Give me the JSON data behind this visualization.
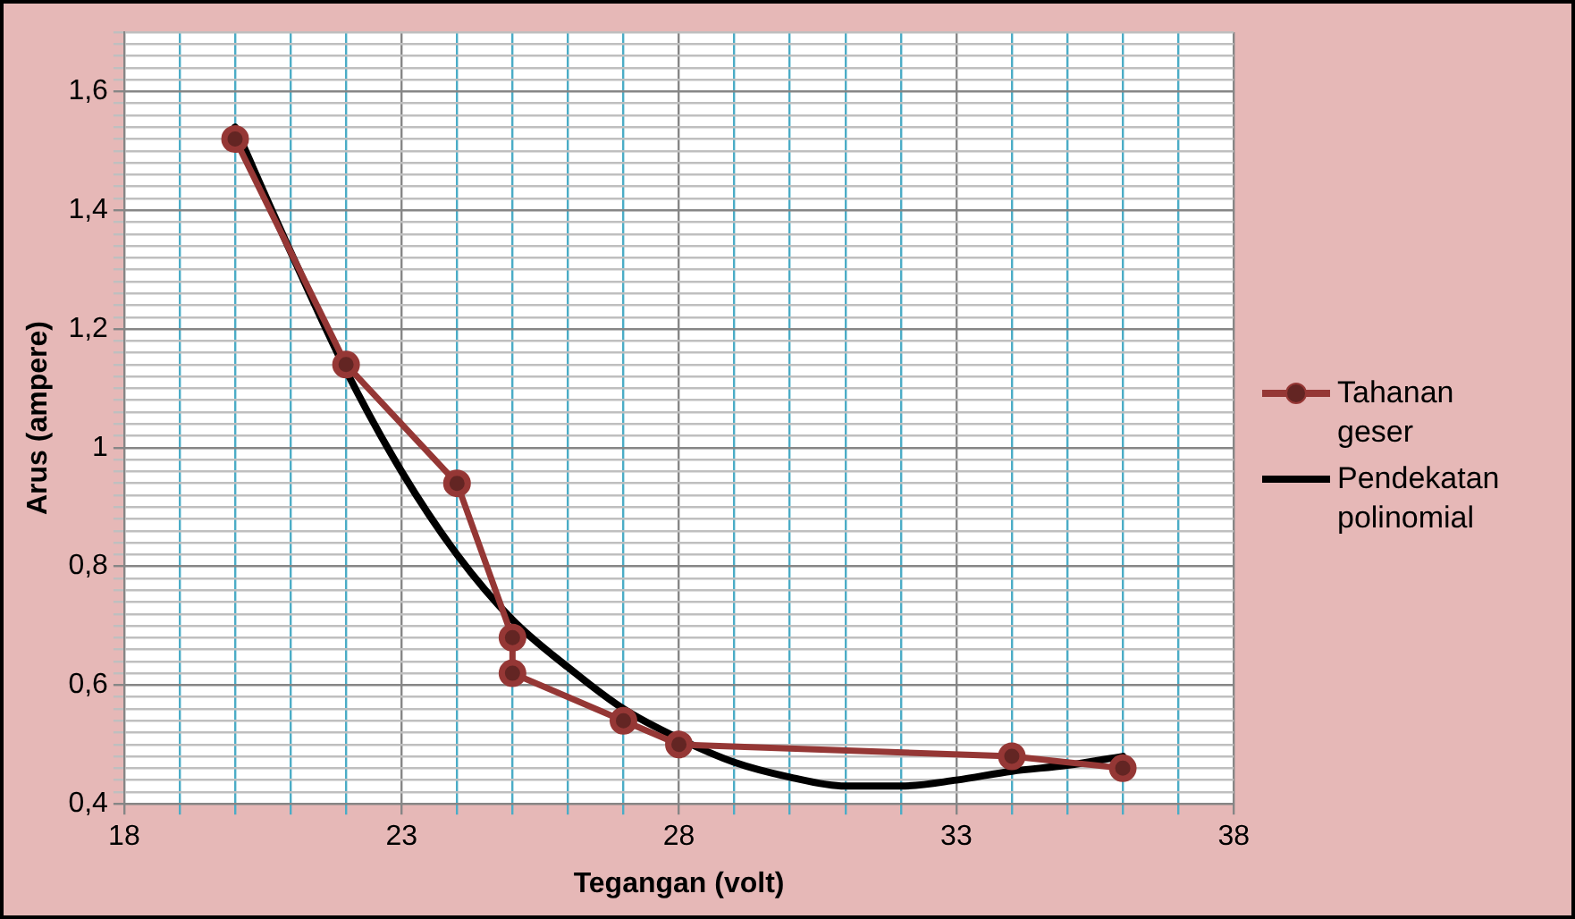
{
  "chart_data": {
    "type": "line",
    "xlabel": "Tegangan (volt)",
    "ylabel": "Arus (ampere)",
    "xlim": [
      18,
      38
    ],
    "xticks": [
      18,
      {
        "value": 19,
        "label": null
      },
      {
        "value": 20,
        "label": null
      },
      {
        "value": 21,
        "label": null
      },
      {
        "value": 22,
        "label": null
      },
      23,
      {
        "value": 24,
        "label": null
      },
      {
        "value": 25,
        "label": null
      },
      {
        "value": 26,
        "label": null
      },
      {
        "value": 27,
        "label": null
      },
      28,
      {
        "value": 29,
        "label": null
      },
      {
        "value": 30,
        "label": null
      },
      {
        "value": 31,
        "label": null
      },
      {
        "value": 32,
        "label": null
      },
      33,
      {
        "value": 34,
        "label": null
      },
      {
        "value": 35,
        "label": null
      },
      {
        "value": 36,
        "label": null
      },
      {
        "value": 37,
        "label": null
      },
      38
    ],
    "ylim": [
      0.4,
      1.7
    ],
    "yticks": [
      {
        "value": 0.4,
        "label": "0,4"
      },
      {
        "value": 0.42,
        "label": null
      },
      {
        "value": 0.44,
        "label": null
      },
      {
        "value": 0.46,
        "label": null
      },
      {
        "value": 0.48,
        "label": null
      },
      {
        "value": 0.5,
        "label": null
      },
      {
        "value": 0.52,
        "label": null
      },
      {
        "value": 0.54,
        "label": null
      },
      {
        "value": 0.56,
        "label": null
      },
      {
        "value": 0.58,
        "label": null
      },
      {
        "value": 0.6,
        "label": "0,6"
      },
      {
        "value": 0.62,
        "label": null
      },
      {
        "value": 0.64,
        "label": null
      },
      {
        "value": 0.66,
        "label": null
      },
      {
        "value": 0.68,
        "label": null
      },
      {
        "value": 0.7,
        "label": null
      },
      {
        "value": 0.72,
        "label": null
      },
      {
        "value": 0.74,
        "label": null
      },
      {
        "value": 0.76,
        "label": null
      },
      {
        "value": 0.78,
        "label": null
      },
      {
        "value": 0.8,
        "label": "0,8"
      },
      {
        "value": 0.82,
        "label": null
      },
      {
        "value": 0.84,
        "label": null
      },
      {
        "value": 0.86,
        "label": null
      },
      {
        "value": 0.88,
        "label": null
      },
      {
        "value": 0.9,
        "label": null
      },
      {
        "value": 0.92,
        "label": null
      },
      {
        "value": 0.94,
        "label": null
      },
      {
        "value": 0.96,
        "label": null
      },
      {
        "value": 0.98,
        "label": null
      },
      {
        "value": 1,
        "label": "1"
      },
      {
        "value": 1.02,
        "label": null
      },
      {
        "value": 1.04,
        "label": null
      },
      {
        "value": 1.06,
        "label": null
      },
      {
        "value": 1.08,
        "label": null
      },
      {
        "value": 1.1,
        "label": null
      },
      {
        "value": 1.12,
        "label": null
      },
      {
        "value": 1.14,
        "label": null
      },
      {
        "value": 1.16,
        "label": null
      },
      {
        "value": 1.18,
        "label": null
      },
      {
        "value": 1.2,
        "label": "1,2"
      },
      {
        "value": 1.22,
        "label": null
      },
      {
        "value": 1.24,
        "label": null
      },
      {
        "value": 1.26,
        "label": null
      },
      {
        "value": 1.28,
        "label": null
      },
      {
        "value": 1.3,
        "label": null
      },
      {
        "value": 1.32,
        "label": null
      },
      {
        "value": 1.34,
        "label": null
      },
      {
        "value": 1.36,
        "label": null
      },
      {
        "value": 1.38,
        "label": null
      },
      {
        "value": 1.4,
        "label": "1,4"
      },
      {
        "value": 1.42,
        "label": null
      },
      {
        "value": 1.44,
        "label": null
      },
      {
        "value": 1.46,
        "label": null
      },
      {
        "value": 1.48,
        "label": null
      },
      {
        "value": 1.5,
        "label": null
      },
      {
        "value": 1.52,
        "label": null
      },
      {
        "value": 1.54,
        "label": null
      },
      {
        "value": 1.56,
        "label": null
      },
      {
        "value": 1.58,
        "label": null
      },
      {
        "value": 1.6,
        "label": "1,6"
      },
      {
        "value": 1.62,
        "label": null
      },
      {
        "value": 1.64,
        "label": null
      },
      {
        "value": 1.66,
        "label": null
      },
      {
        "value": 1.68,
        "label": null
      },
      {
        "value": 1.7,
        "label": null
      }
    ],
    "grid": true,
    "legend": "right",
    "series": [
      {
        "name": "Tahanan geser",
        "color": "#953735",
        "marker": "circle",
        "x": [
          20,
          22,
          24,
          25,
          25,
          27,
          28,
          34,
          36
        ],
        "values": [
          1.52,
          1.14,
          0.94,
          0.68,
          0.62,
          0.54,
          0.5,
          0.48,
          0.46
        ]
      },
      {
        "name": "Pendekatan polinomial",
        "color": "#000000",
        "marker": "none",
        "x": [
          20,
          21,
          22,
          23,
          24,
          25,
          26,
          27,
          28,
          29,
          30,
          31,
          32,
          33,
          34,
          35,
          36
        ],
        "values": [
          1.54,
          1.33,
          1.13,
          0.96,
          0.82,
          0.71,
          0.63,
          0.56,
          0.51,
          0.47,
          0.445,
          0.43,
          0.43,
          0.44,
          0.455,
          0.465,
          0.48
        ]
      }
    ]
  }
}
